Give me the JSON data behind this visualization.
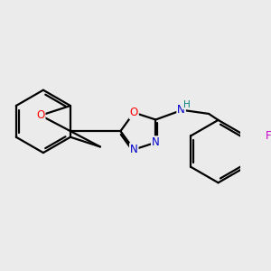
{
  "bg_color": "#ebebeb",
  "bond_color": "#000000",
  "bond_width": 1.6,
  "atom_colors": {
    "O": "#ff0000",
    "N": "#0000cc",
    "F": "#cc00cc",
    "NH_N": "#0000cc",
    "NH_H": "#008080",
    "C": "#000000"
  },
  "font_size": 8.5
}
